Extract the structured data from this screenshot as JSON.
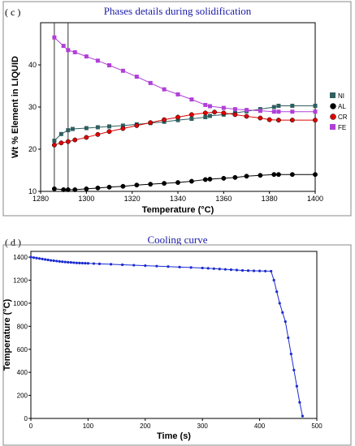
{
  "chart_data": [
    {
      "panel_label": "( c )",
      "title": "Phases details during solidification",
      "type": "line",
      "xlabel": "Temperature (°C)",
      "ylabel": "Wt % Element in LIQUID",
      "xlim": [
        1280,
        1400
      ],
      "ylim": [
        10,
        50
      ],
      "x_ticks": [
        1280,
        1300,
        1320,
        1340,
        1360,
        1380,
        1400
      ],
      "y_ticks": [
        10,
        20,
        30,
        40
      ],
      "vlines": [
        1286,
        1292
      ],
      "legend_position": "right",
      "grid": false,
      "series": [
        {
          "name": "NI",
          "color": "#2f5f5f",
          "marker": "square",
          "x": [
            1286,
            1289,
            1292,
            1294,
            1300,
            1305,
            1310,
            1316,
            1322,
            1328,
            1334,
            1340,
            1346,
            1352,
            1354,
            1360,
            1365,
            1370,
            1376,
            1382,
            1384,
            1390,
            1400
          ],
          "y": [
            22.0,
            23.6,
            24.5,
            24.8,
            25.0,
            25.2,
            25.4,
            25.6,
            25.9,
            26.2,
            26.5,
            26.9,
            27.2,
            27.6,
            27.9,
            28.2,
            28.6,
            29.0,
            29.5,
            30.0,
            30.3,
            30.3,
            30.3
          ]
        },
        {
          "name": "AL",
          "color": "#000000",
          "marker": "circle",
          "x": [
            1286,
            1290,
            1292,
            1295,
            1300,
            1305,
            1310,
            1316,
            1322,
            1328,
            1334,
            1340,
            1346,
            1352,
            1354,
            1360,
            1365,
            1370,
            1376,
            1382,
            1384,
            1390,
            1400
          ],
          "y": [
            10.6,
            10.4,
            10.4,
            10.4,
            10.6,
            10.8,
            11.0,
            11.2,
            11.5,
            11.7,
            11.9,
            12.1,
            12.4,
            12.8,
            12.9,
            13.1,
            13.3,
            13.6,
            13.8,
            14.0,
            14.0,
            14.0,
            14.0
          ]
        },
        {
          "name": "CR",
          "color": "#e00000",
          "marker": "circle",
          "x": [
            1286,
            1289,
            1292,
            1295,
            1300,
            1305,
            1310,
            1316,
            1322,
            1328,
            1334,
            1340,
            1346,
            1352,
            1356,
            1360,
            1365,
            1370,
            1376,
            1380,
            1384,
            1390,
            1400
          ],
          "y": [
            21.0,
            21.5,
            21.8,
            22.2,
            22.8,
            23.5,
            24.2,
            24.9,
            25.6,
            26.3,
            27.0,
            27.6,
            28.2,
            28.6,
            28.8,
            28.6,
            28.2,
            27.8,
            27.4,
            27.0,
            26.9,
            26.9,
            26.9
          ]
        },
        {
          "name": "FE",
          "color": "#b040d8",
          "marker": "square",
          "x": [
            1286,
            1290,
            1292,
            1295,
            1300,
            1305,
            1310,
            1316,
            1322,
            1328,
            1334,
            1340,
            1346,
            1352,
            1354,
            1360,
            1365,
            1370,
            1376,
            1382,
            1384,
            1390,
            1400
          ],
          "y": [
            46.5,
            44.5,
            43.5,
            43.0,
            42.0,
            41.0,
            39.9,
            38.6,
            37.2,
            35.7,
            34.2,
            33.0,
            31.8,
            30.5,
            30.2,
            29.8,
            29.5,
            29.3,
            29.1,
            28.9,
            28.9,
            28.9,
            28.9
          ]
        }
      ]
    },
    {
      "panel_label": "( d )",
      "title": "Cooling curve",
      "type": "line",
      "xlabel": "Time (s)",
      "ylabel": "Temperature (°C)",
      "xlim": [
        0,
        500
      ],
      "ylim": [
        0,
        1450
      ],
      "x_ticks": [
        0,
        100,
        200,
        300,
        400,
        500
      ],
      "y_ticks": [
        0,
        200,
        400,
        600,
        800,
        1000,
        1200,
        1400
      ],
      "grid": false,
      "series": [
        {
          "name": "",
          "color": "#1a2ad0",
          "marker": "circle",
          "x": [
            0,
            5,
            10,
            15,
            20,
            25,
            30,
            35,
            40,
            45,
            50,
            55,
            60,
            65,
            70,
            75,
            80,
            85,
            90,
            95,
            100,
            110,
            120,
            140,
            160,
            180,
            200,
            220,
            240,
            260,
            280,
            300,
            310,
            320,
            330,
            340,
            350,
            360,
            370,
            380,
            390,
            400,
            410,
            420,
            425,
            430,
            435,
            440,
            445,
            450,
            455,
            460,
            465,
            470,
            475
          ],
          "y": [
            1400,
            1396,
            1392,
            1388,
            1384,
            1380,
            1376,
            1372,
            1369,
            1366,
            1363,
            1360,
            1358,
            1356,
            1354,
            1352,
            1350,
            1349,
            1348,
            1347,
            1346,
            1344,
            1342,
            1338,
            1334,
            1330,
            1326,
            1322,
            1318,
            1314,
            1310,
            1306,
            1303,
            1300,
            1297,
            1294,
            1291,
            1288,
            1285,
            1283,
            1281,
            1280,
            1279,
            1278,
            1200,
            1100,
            1000,
            920,
            840,
            700,
            560,
            420,
            280,
            140,
            20
          ]
        }
      ]
    }
  ]
}
